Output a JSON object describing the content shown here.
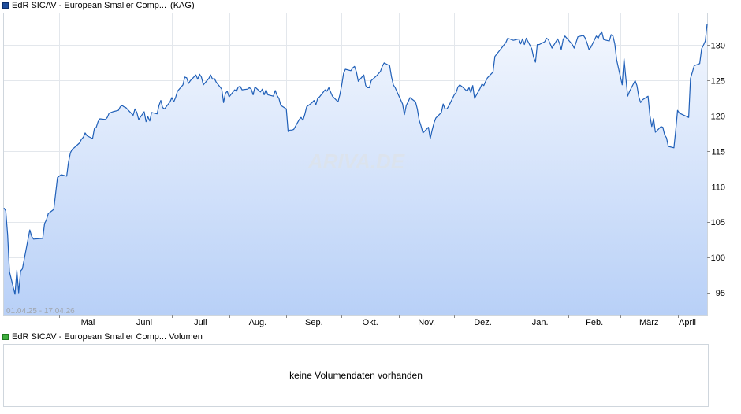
{
  "price_legend": {
    "title": "EdR SICAV - European Smaller Comp...",
    "suffix": "(KAG)",
    "color": "#1f4e9c"
  },
  "volume_legend": {
    "title": "EdR SICAV - European Smaller Comp... Volumen",
    "color": "#3fae3f"
  },
  "volume_panel": {
    "message": "keine Volumendaten vorhanden"
  },
  "watermark": "ARIVA.DE",
  "chart_data": {
    "type": "area",
    "date_range_label": "01.04.25 - 17.04.26",
    "x_tick_labels": [
      "Mai",
      "Juni",
      "Juli",
      "Aug.",
      "Sep.",
      "Okt.",
      "Nov.",
      "Dez.",
      "Jan.",
      "Feb.",
      "März",
      "April"
    ],
    "y_ticks": [
      95,
      100,
      105,
      110,
      115,
      120,
      125,
      130
    ],
    "ylim": [
      91.9,
      134.5
    ],
    "y_axis_side": "right",
    "grid": true,
    "line_color": "#1f5fb8",
    "fill_top_color": "#f3f7fe",
    "fill_bottom_color": "#b8d0f7",
    "series": [
      {
        "x": [
          "2025-04-01",
          "2025-04-02",
          "2025-04-03",
          "2025-04-04",
          "2025-04-07",
          "2025-04-08",
          "2025-04-09",
          "2025-04-10",
          "2025-04-11",
          "2025-04-14",
          "2025-04-15",
          "2025-04-16",
          "2025-04-17",
          "2025-04-22",
          "2025-04-23",
          "2025-04-24",
          "2025-04-25",
          "2025-04-28",
          "2025-04-29",
          "2025-04-30",
          "2025-05-02",
          "2025-05-05",
          "2025-05-06",
          "2025-05-07",
          "2025-05-08",
          "2025-05-09",
          "2025-05-12",
          "2025-05-13",
          "2025-05-14",
          "2025-05-15",
          "2025-05-16",
          "2025-05-19",
          "2025-05-20",
          "2025-05-21",
          "2025-05-22",
          "2025-05-23",
          "2025-05-26",
          "2025-05-27",
          "2025-05-28",
          "2025-05-30",
          "2025-06-02",
          "2025-06-03",
          "2025-06-04",
          "2025-06-05",
          "2025-06-06",
          "2025-06-10",
          "2025-06-11",
          "2025-06-12",
          "2025-06-13",
          "2025-06-16",
          "2025-06-17",
          "2025-06-18",
          "2025-06-19",
          "2025-06-20",
          "2025-06-23",
          "2025-06-24",
          "2025-06-25",
          "2025-06-26",
          "2025-06-27",
          "2025-06-30",
          "2025-07-01",
          "2025-07-02",
          "2025-07-03",
          "2025-07-04",
          "2025-07-07",
          "2025-07-08",
          "2025-07-09",
          "2025-07-10",
          "2025-07-11",
          "2025-07-14",
          "2025-07-15",
          "2025-07-16",
          "2025-07-17",
          "2025-07-18",
          "2025-07-21",
          "2025-07-22",
          "2025-07-23",
          "2025-07-24",
          "2025-07-25",
          "2025-07-28",
          "2025-07-29",
          "2025-07-30",
          "2025-07-31",
          "2025-08-01",
          "2025-08-04",
          "2025-08-05",
          "2025-08-06",
          "2025-08-07",
          "2025-08-08",
          "2025-08-11",
          "2025-08-12",
          "2025-08-13",
          "2025-08-14",
          "2025-08-15",
          "2025-08-18",
          "2025-08-19",
          "2025-08-20",
          "2025-08-21",
          "2025-08-22",
          "2025-08-25",
          "2025-08-26",
          "2025-08-27",
          "2025-08-28",
          "2025-08-29",
          "2025-09-01",
          "2025-09-02",
          "2025-09-03",
          "2025-09-04",
          "2025-09-05",
          "2025-09-08",
          "2025-09-09",
          "2025-09-10",
          "2025-09-11",
          "2025-09-12",
          "2025-09-15",
          "2025-09-16",
          "2025-09-17",
          "2025-09-18",
          "2025-09-19",
          "2025-09-22",
          "2025-09-23",
          "2025-09-24",
          "2025-09-25",
          "2025-09-26",
          "2025-09-29",
          "2025-09-30",
          "2025-10-01",
          "2025-10-02",
          "2025-10-03",
          "2025-10-06",
          "2025-10-07",
          "2025-10-08",
          "2025-10-09",
          "2025-10-10",
          "2025-10-13",
          "2025-10-14",
          "2025-10-15",
          "2025-10-16",
          "2025-10-17",
          "2025-10-20",
          "2025-10-21",
          "2025-10-22",
          "2025-10-23",
          "2025-10-24",
          "2025-10-27",
          "2025-10-28",
          "2025-10-29",
          "2025-10-30",
          "2025-10-31",
          "2025-11-03",
          "2025-11-04",
          "2025-11-05",
          "2025-11-06",
          "2025-11-07",
          "2025-11-10",
          "2025-11-11",
          "2025-11-12",
          "2025-11-13",
          "2025-11-14",
          "2025-11-17",
          "2025-11-18",
          "2025-11-19",
          "2025-11-20",
          "2025-11-21",
          "2025-11-24",
          "2025-11-25",
          "2025-11-26",
          "2025-11-27",
          "2025-11-28",
          "2025-12-01",
          "2025-12-02",
          "2025-12-03",
          "2025-12-04",
          "2025-12-05",
          "2025-12-08",
          "2025-12-09",
          "2025-12-10",
          "2025-12-11",
          "2025-12-12",
          "2025-12-15",
          "2025-12-16",
          "2025-12-17",
          "2025-12-18",
          "2025-12-19",
          "2025-12-22",
          "2025-12-23",
          "2025-12-29",
          "2025-12-30",
          "2026-01-02",
          "2026-01-05",
          "2026-01-06",
          "2026-01-07",
          "2026-01-08",
          "2026-01-09",
          "2026-01-12",
          "2026-01-13",
          "2026-01-14",
          "2026-01-15",
          "2026-01-16",
          "2026-01-19",
          "2026-01-20",
          "2026-01-21",
          "2026-01-22",
          "2026-01-23",
          "2026-01-26",
          "2026-01-27",
          "2026-01-28",
          "2026-01-29",
          "2026-01-30",
          "2026-02-02",
          "2026-02-03",
          "2026-02-04",
          "2026-02-05",
          "2026-02-06",
          "2026-02-09",
          "2026-02-10",
          "2026-02-11",
          "2026-02-12",
          "2026-02-13",
          "2026-02-16",
          "2026-02-17",
          "2026-02-18",
          "2026-02-19",
          "2026-02-20",
          "2026-02-23",
          "2026-02-24",
          "2026-02-25",
          "2026-02-26",
          "2026-02-27",
          "2026-03-02",
          "2026-03-03",
          "2026-03-04",
          "2026-03-05",
          "2026-03-06",
          "2026-03-09",
          "2026-03-10",
          "2026-03-11",
          "2026-03-12",
          "2026-03-13",
          "2026-03-16",
          "2026-03-17",
          "2026-03-18",
          "2026-03-19",
          "2026-03-20",
          "2026-03-23",
          "2026-03-24",
          "2026-03-25",
          "2026-03-26",
          "2026-03-27",
          "2026-03-30",
          "2026-03-31",
          "2026-04-01",
          "2026-04-02",
          "2026-04-07",
          "2026-04-08",
          "2026-04-09",
          "2026-04-10",
          "2026-04-13",
          "2026-04-14",
          "2026-04-15",
          "2026-04-16",
          "2026-04-17"
        ],
        "values": [
          107.0,
          106.6,
          103.2,
          98.0,
          94.8,
          98.2,
          95.0,
          98.1,
          98.4,
          102.5,
          103.9,
          103.0,
          102.6,
          102.7,
          104.8,
          105.3,
          106.2,
          106.8,
          109.1,
          111.3,
          111.7,
          111.5,
          113.5,
          114.8,
          115.3,
          115.5,
          116.2,
          116.7,
          117.0,
          117.6,
          117.2,
          116.8,
          118.2,
          118.4,
          119.2,
          119.6,
          119.5,
          119.8,
          120.4,
          120.6,
          120.8,
          121.3,
          121.5,
          121.3,
          121.2,
          120.1,
          121.0,
          120.5,
          119.5,
          120.6,
          119.2,
          119.9,
          119.3,
          120.5,
          120.3,
          121.5,
          122.2,
          121.2,
          121.0,
          122.0,
          122.6,
          122.0,
          122.6,
          123.5,
          124.4,
          125.5,
          125.4,
          124.6,
          125.0,
          125.8,
          125.2,
          125.9,
          125.5,
          124.4,
          125.3,
          125.8,
          125.2,
          125.3,
          124.8,
          123.8,
          121.9,
          123.2,
          123.5,
          122.7,
          123.7,
          123.5,
          124.1,
          124.2,
          123.7,
          123.8,
          124.0,
          123.8,
          123.0,
          124.1,
          123.4,
          123.8,
          123.0,
          123.7,
          123.0,
          122.8,
          123.6,
          122.9,
          122.5,
          121.5,
          121.0,
          117.8,
          118.0,
          118.0,
          118.1,
          119.5,
          119.8,
          119.4,
          120.2,
          121.3,
          121.9,
          122.2,
          121.6,
          122.5,
          122.7,
          123.7,
          123.5,
          124.0,
          123.4,
          122.8,
          122.0,
          123.0,
          124.3,
          126.0,
          126.6,
          126.4,
          126.8,
          127.0,
          126.2,
          124.9,
          125.8,
          124.3,
          124.0,
          124.0,
          125.0,
          125.7,
          126.0,
          126.3,
          127.0,
          127.5,
          127.1,
          125.5,
          124.4,
          124.0,
          123.4,
          121.7,
          120.2,
          121.5,
          122.0,
          122.6,
          122.0,
          121.0,
          119.4,
          118.6,
          117.6,
          118.4,
          116.8,
          118.0,
          119.0,
          119.7,
          120.5,
          121.7,
          121.0,
          121.0,
          121.4,
          123.0,
          123.3,
          124.1,
          124.4,
          124.2,
          123.5,
          124.0,
          123.3,
          124.3,
          122.5,
          123.9,
          124.5,
          124.3,
          124.9,
          125.4,
          126.2,
          128.4,
          130.4,
          131.0,
          130.7,
          130.9,
          130.2,
          130.9,
          130.1,
          131.0,
          129.5,
          128.3,
          127.6,
          130.1,
          130.1,
          130.5,
          131.0,
          130.8,
          130.2,
          129.6,
          130.9,
          130.3,
          129.4,
          130.8,
          131.3,
          130.4,
          130.1,
          129.6,
          130.4,
          131.2,
          131.4,
          131.0,
          130.3,
          129.4,
          129.7,
          131.3,
          131.0,
          131.6,
          131.8,
          130.8,
          130.6,
          131.5,
          131.3,
          130.2,
          127.9,
          124.4,
          128.1,
          125.3,
          122.8,
          123.5,
          125.0,
          124.3,
          122.7,
          121.9,
          122.3,
          122.8,
          120.1,
          118.5,
          119.6,
          117.7,
          118.5,
          118.4,
          117.3,
          116.9,
          115.7,
          115.5,
          118.0,
          120.8,
          120.4,
          119.8,
          125.3,
          126.2,
          127.1,
          127.4,
          129.5,
          130.0,
          130.6,
          133.0
        ]
      }
    ]
  }
}
